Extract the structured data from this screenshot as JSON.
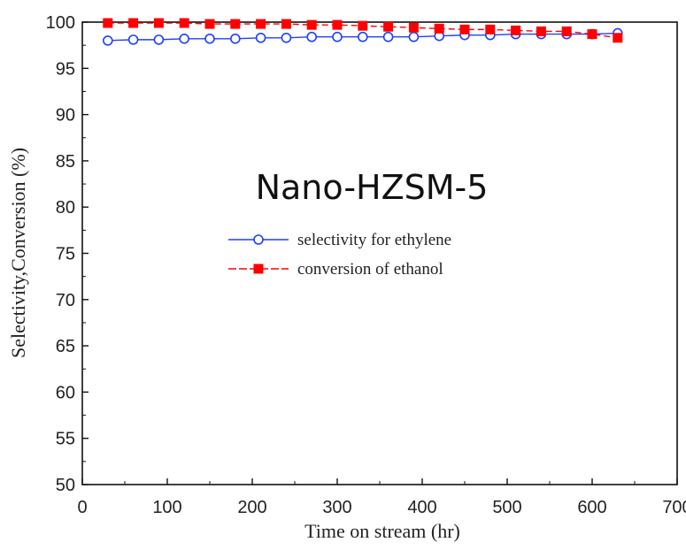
{
  "chart_data": {
    "type": "line",
    "xlabel": "Time on stream  (hr)",
    "ylabel": "Selectivity,Conversion (%)",
    "xlim": [
      0,
      700
    ],
    "ylim": [
      50,
      100
    ],
    "xticks": [
      "0",
      "100",
      "200",
      "300",
      "400",
      "500",
      "600",
      "700"
    ],
    "yticks": [
      "50",
      "55",
      "60",
      "65",
      "70",
      "75",
      "80",
      "85",
      "90",
      "95",
      "100"
    ],
    "annotation": "Nano-HZSM-5",
    "legend_position": "center-left",
    "series": [
      {
        "name": "selectivity for ethylene",
        "color": "#1f3fff",
        "marker": "open-circle",
        "x": [
          30,
          60,
          90,
          120,
          150,
          180,
          210,
          240,
          270,
          300,
          330,
          360,
          390,
          420,
          450,
          480,
          510,
          540,
          570,
          600,
          630
        ],
        "y": [
          98.0,
          98.1,
          98.1,
          98.2,
          98.2,
          98.2,
          98.3,
          98.3,
          98.4,
          98.4,
          98.4,
          98.4,
          98.4,
          98.5,
          98.6,
          98.6,
          98.7,
          98.7,
          98.7,
          98.7,
          98.8
        ]
      },
      {
        "name": "conversion of ethanol",
        "color": "#ff0000",
        "marker": "filled-square",
        "x": [
          30,
          60,
          90,
          120,
          150,
          180,
          210,
          240,
          270,
          300,
          330,
          360,
          390,
          420,
          450,
          480,
          510,
          540,
          570,
          600,
          630
        ],
        "y": [
          99.9,
          99.9,
          99.9,
          99.9,
          99.8,
          99.8,
          99.8,
          99.8,
          99.7,
          99.7,
          99.6,
          99.5,
          99.4,
          99.3,
          99.2,
          99.2,
          99.1,
          99.0,
          99.0,
          98.7,
          98.3
        ]
      }
    ]
  }
}
